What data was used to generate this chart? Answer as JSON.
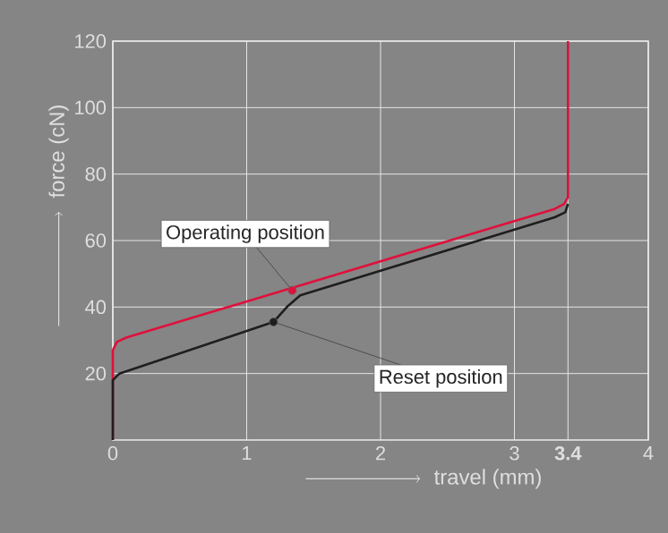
{
  "chart_data": {
    "type": "line",
    "xlabel": "travel (mm)",
    "ylabel": "force (cN)",
    "series": [
      {
        "color": "#e0103c",
        "x": [
          0,
          0,
          0.03,
          0.1,
          3.3,
          3.37,
          3.4,
          3.4
        ],
        "values": [
          0,
          27,
          29.5,
          30.8,
          69.5,
          71,
          73,
          120
        ]
      },
      {
        "color": "#1e1e1e",
        "x": [
          0,
          0,
          0.05,
          1.2,
          1.3,
          1.4,
          3.3,
          3.38,
          3.4
        ],
        "values": [
          0,
          18,
          20,
          35.5,
          40,
          43.5,
          67,
          68.5,
          71
        ]
      }
    ],
    "annotations": [
      {
        "text": "Operating position",
        "x": 1.34,
        "y": 45
      },
      {
        "text": "Reset position",
        "x": 1.2,
        "y": 35.5
      }
    ],
    "xlim": [
      0,
      4
    ],
    "xticks": [
      0,
      1,
      2,
      3,
      {
        "value": 3.4,
        "label": "**3.4**"
      },
      4
    ],
    "ylim": [
      0,
      120
    ],
    "yticks": [
      20,
      40,
      60,
      80,
      100,
      120
    ],
    "grid": true
  }
}
